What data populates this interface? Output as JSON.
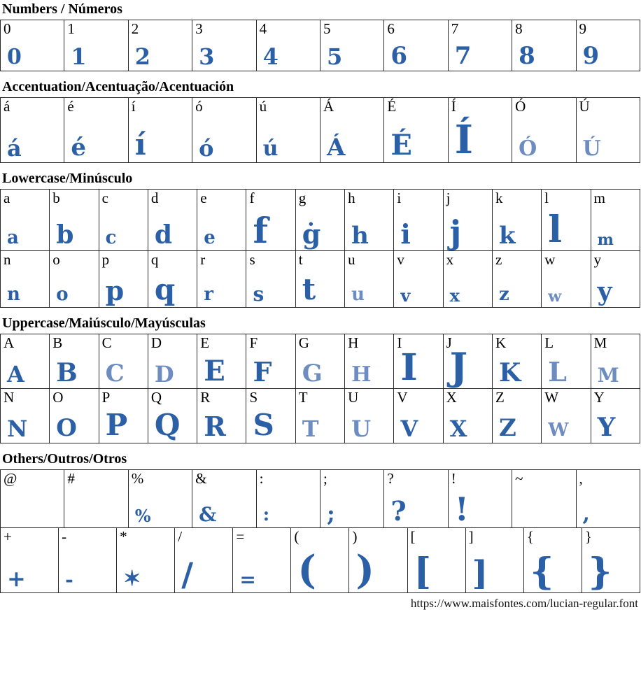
{
  "page": {
    "footer_url": "https://www.maisfontes.com/lucian-regular.font",
    "accent_color": "#2b5fa6",
    "light_accent_color": "#6d8cc0",
    "text_color": "#000000",
    "border_color": "#2a2a2a"
  },
  "sections": [
    {
      "id": "numbers",
      "title": "Numbers / Números",
      "rows": [
        [
          "0",
          "1",
          "2",
          "3",
          "4",
          "5",
          "6",
          "7",
          "8",
          "9"
        ]
      ]
    },
    {
      "id": "accentuation",
      "title": "Accentuation/Acentuação/Acentuación",
      "rows": [
        [
          "á",
          "é",
          "í",
          "ó",
          "ú",
          "Á",
          "É",
          "Í",
          "Ó",
          "Ú"
        ]
      ]
    },
    {
      "id": "lowercase",
      "title": "Lowercase/Minúsculo",
      "rows": [
        [
          "a",
          "b",
          "c",
          "d",
          "e",
          "f",
          "g",
          "h",
          "i",
          "j",
          "k",
          "l",
          "m"
        ],
        [
          "n",
          "o",
          "p",
          "q",
          "r",
          "s",
          "t",
          "u",
          "v",
          "x",
          "z",
          "w",
          "y"
        ]
      ]
    },
    {
      "id": "uppercase",
      "title": "Uppercase/Maiúsculo/Mayúsculas",
      "rows": [
        [
          "A",
          "B",
          "C",
          "D",
          "E",
          "F",
          "G",
          "H",
          "I",
          "J",
          "K",
          "L",
          "M"
        ],
        [
          "N",
          "O",
          "P",
          "Q",
          "R",
          "S",
          "T",
          "U",
          "V",
          "X",
          "Z",
          "W",
          "Y"
        ]
      ]
    },
    {
      "id": "others",
      "title": "Others/Outros/Otros",
      "rows": [
        [
          "@",
          "#",
          "%",
          "&",
          ":",
          ";",
          "?",
          "!",
          "~",
          ","
        ],
        [
          "+",
          "-",
          "*",
          "/",
          "=",
          "(",
          ")",
          "[",
          "]",
          "{",
          "}"
        ]
      ]
    }
  ],
  "missing_glyphs": [
    "@",
    "#",
    "~"
  ],
  "light_glyphs": [
    "C",
    "D",
    "G",
    "H",
    "L",
    "M",
    "T",
    "U",
    "W",
    "Ó",
    "Ú",
    "w",
    "u"
  ]
}
